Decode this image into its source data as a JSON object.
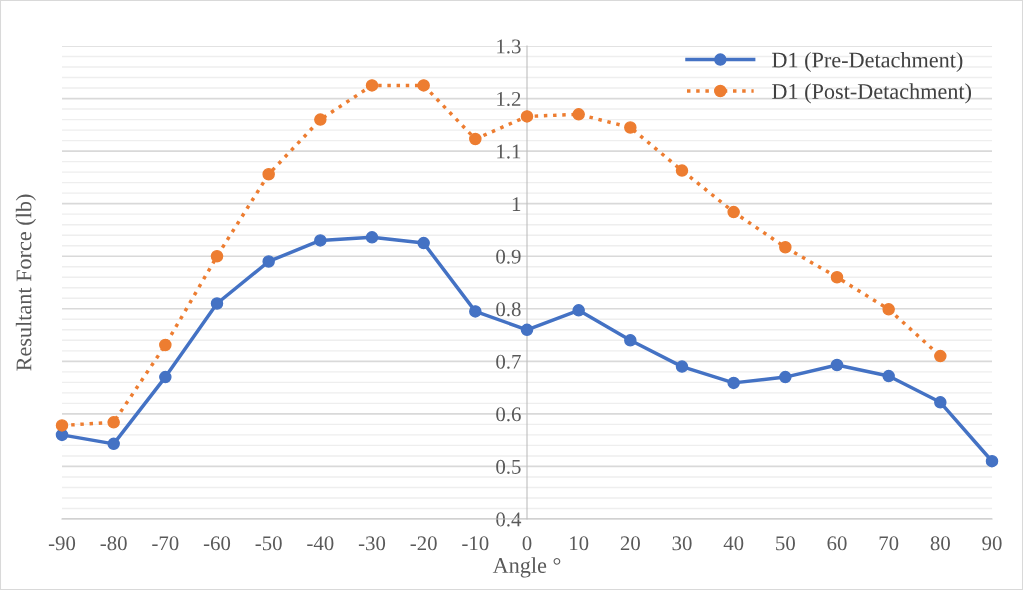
{
  "chart_data": {
    "type": "line",
    "xlabel": "Angle °",
    "ylabel": "Resultant Force (lb)",
    "x": [
      -90,
      -80,
      -70,
      -60,
      -50,
      -40,
      -30,
      -20,
      -10,
      0,
      10,
      20,
      30,
      40,
      50,
      60,
      70,
      80,
      90
    ],
    "series": [
      {
        "name": "D1 (Pre-Detachment)",
        "color": "#4472c4",
        "line_style": "solid",
        "values": [
          0.56,
          0.543,
          0.67,
          0.81,
          0.89,
          0.93,
          0.936,
          0.925,
          0.795,
          0.76,
          0.797,
          0.74,
          0.69,
          0.659,
          0.67,
          0.693,
          0.672,
          0.622,
          0.51
        ]
      },
      {
        "name": "D1 (Post-Detachment)",
        "color": "#ed7d31",
        "line_style": "dotted",
        "values": [
          0.578,
          0.584,
          0.731,
          0.9,
          1.056,
          1.16,
          1.225,
          1.225,
          1.123,
          1.166,
          1.17,
          1.145,
          1.063,
          0.984,
          0.917,
          0.86,
          0.799,
          0.71,
          null
        ]
      }
    ],
    "marker": "circle",
    "xlim": [
      -90,
      90
    ],
    "xticks": [
      -90,
      -80,
      -70,
      -60,
      -50,
      -40,
      -30,
      -20,
      -10,
      0,
      10,
      20,
      30,
      40,
      50,
      60,
      70,
      80,
      90
    ],
    "ylim": [
      0.4,
      1.3
    ],
    "yticks": [
      {
        "value": 0.4,
        "label": "0.4"
      },
      {
        "value": 0.42,
        "label": null
      },
      {
        "value": 0.44,
        "label": null
      },
      {
        "value": 0.46,
        "label": null
      },
      {
        "value": 0.48,
        "label": null
      },
      {
        "value": 0.5,
        "label": "0.5"
      },
      {
        "value": 0.52,
        "label": null
      },
      {
        "value": 0.54,
        "label": null
      },
      {
        "value": 0.56,
        "label": null
      },
      {
        "value": 0.58,
        "label": null
      },
      {
        "value": 0.6,
        "label": "0.6"
      },
      {
        "value": 0.62,
        "label": null
      },
      {
        "value": 0.64,
        "label": null
      },
      {
        "value": 0.66,
        "label": null
      },
      {
        "value": 0.68,
        "label": null
      },
      {
        "value": 0.7,
        "label": "0.7"
      },
      {
        "value": 0.72,
        "label": null
      },
      {
        "value": 0.74,
        "label": null
      },
      {
        "value": 0.76,
        "label": null
      },
      {
        "value": 0.78,
        "label": null
      },
      {
        "value": 0.8,
        "label": "0.8"
      },
      {
        "value": 0.82,
        "label": null
      },
      {
        "value": 0.84,
        "label": null
      },
      {
        "value": 0.86,
        "label": null
      },
      {
        "value": 0.88,
        "label": null
      },
      {
        "value": 0.9,
        "label": "0.9"
      },
      {
        "value": 0.92,
        "label": null
      },
      {
        "value": 0.94,
        "label": null
      },
      {
        "value": 0.96,
        "label": null
      },
      {
        "value": 0.98,
        "label": null
      },
      {
        "value": 1,
        "label": "1"
      },
      {
        "value": 1.02,
        "label": null
      },
      {
        "value": 1.04,
        "label": null
      },
      {
        "value": 1.06,
        "label": null
      },
      {
        "value": 1.08,
        "label": null
      },
      {
        "value": 1.1,
        "label": "1.1"
      },
      {
        "value": 1.12,
        "label": null
      },
      {
        "value": 1.14,
        "label": null
      },
      {
        "value": 1.16,
        "label": null
      },
      {
        "value": 1.18,
        "label": null
      },
      {
        "value": 1.2,
        "label": "1.2"
      },
      {
        "value": 1.22,
        "label": null
      },
      {
        "value": 1.24,
        "label": null
      },
      {
        "value": 1.26,
        "label": null
      },
      {
        "value": 1.28,
        "label": null
      },
      {
        "value": 1.3,
        "label": "1.3"
      }
    ],
    "grid": "y",
    "legend": "top right"
  }
}
